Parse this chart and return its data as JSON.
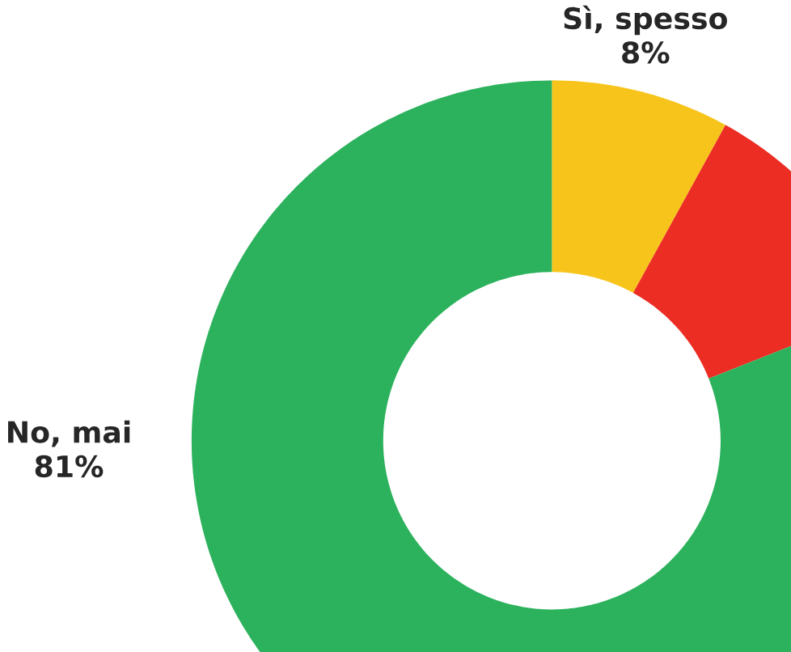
{
  "chart_data": {
    "type": "donut",
    "categories": [
      "Sì, spesso",
      null,
      "No, mai"
    ],
    "values": [
      8,
      11,
      81
    ],
    "colors": [
      "#f7c41b",
      "#eb2d24",
      "#2cb25c"
    ],
    "value_labels": [
      "8%",
      null,
      "81%"
    ]
  }
}
